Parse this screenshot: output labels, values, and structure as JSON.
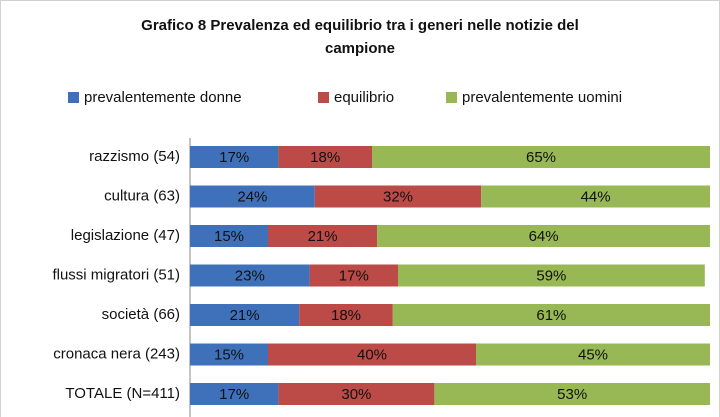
{
  "chart_data": {
    "type": "stacked_barh",
    "title": "Grafico 8 Prevalenza ed equilibrio tra i generi nelle notizie del campione",
    "categories": [
      "razzismo (54)",
      "cultura (63)",
      "legislazione (47)",
      "flussi migratori (51)",
      "società (66)",
      "cronaca nera (243)",
      "TOTALE (N=411)"
    ],
    "series": [
      {
        "name": "prevalentemente donne",
        "color": "#3f71ba",
        "values": [
          17,
          24,
          15,
          23,
          21,
          15,
          17
        ],
        "value_labels": [
          "17%",
          "24%",
          "15%",
          "23%",
          "21%",
          "15%",
          "17%"
        ]
      },
      {
        "name": "equilibrio",
        "color": "#bc4a47",
        "values": [
          18,
          32,
          21,
          17,
          18,
          40,
          30
        ],
        "value_labels": [
          "18%",
          "32%",
          "21%",
          "17%",
          "18%",
          "40%",
          "30%"
        ]
      },
      {
        "name": "prevalentemente uomini",
        "color": "#97b854",
        "values": [
          65,
          44,
          64,
          59,
          61,
          45,
          53
        ],
        "value_labels": [
          "65%",
          "44%",
          "64%",
          "59%",
          "61%",
          "45%",
          "53%"
        ]
      }
    ],
    "xlim": [
      0,
      100
    ]
  }
}
